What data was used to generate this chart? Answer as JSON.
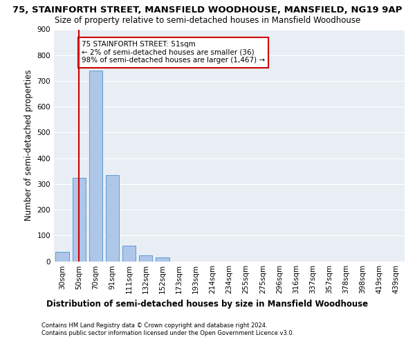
{
  "title": "75, STAINFORTH STREET, MANSFIELD WOODHOUSE, MANSFIELD, NG19 9AP",
  "subtitle": "Size of property relative to semi-detached houses in Mansfield Woodhouse",
  "xlabel_bottom": "Distribution of semi-detached houses by size in Mansfield Woodhouse",
  "ylabel": "Number of semi-detached properties",
  "footnote1": "Contains HM Land Registry data © Crown copyright and database right 2024.",
  "footnote2": "Contains public sector information licensed under the Open Government Licence v3.0.",
  "categories": [
    "30sqm",
    "50sqm",
    "70sqm",
    "91sqm",
    "111sqm",
    "132sqm",
    "152sqm",
    "173sqm",
    "193sqm",
    "214sqm",
    "234sqm",
    "255sqm",
    "275sqm",
    "296sqm",
    "316sqm",
    "337sqm",
    "357sqm",
    "378sqm",
    "398sqm",
    "419sqm",
    "439sqm"
  ],
  "values": [
    36,
    325,
    740,
    335,
    60,
    22,
    14,
    0,
    0,
    0,
    0,
    0,
    0,
    0,
    0,
    0,
    0,
    0,
    0,
    0,
    0
  ],
  "bar_color": "#aec6e8",
  "bar_edge_color": "#5b9bd5",
  "background_color": "#e8eef4",
  "grid_color": "#ffffff",
  "vline_x": 1.0,
  "vline_color": "#cc0000",
  "annotation_text": "75 STAINFORTH STREET: 51sqm\n← 2% of semi-detached houses are smaller (36)\n98% of semi-detached houses are larger (1,467) →",
  "annotation_box_color": "#cc0000",
  "ylim": [
    0,
    900
  ],
  "yticks": [
    0,
    100,
    200,
    300,
    400,
    500,
    600,
    700,
    800,
    900
  ],
  "title_fontsize": 9.5,
  "subtitle_fontsize": 8.5,
  "tick_fontsize": 7.5,
  "ylabel_fontsize": 8.5,
  "annotation_fontsize": 7.5,
  "xlabel_fontsize": 8.5,
  "footnote_fontsize": 6.0
}
